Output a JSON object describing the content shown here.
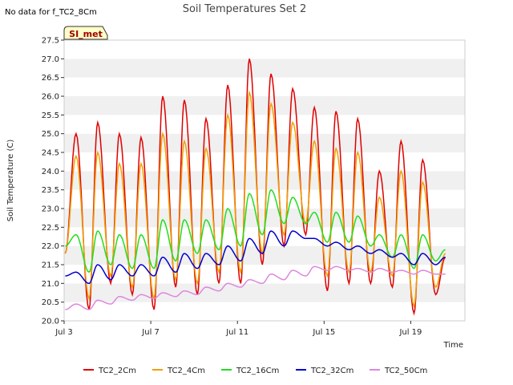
{
  "chart_data": {
    "type": "line",
    "title": "Soil Temperatures Set 2",
    "note": "No data for f_TC2_8Cm",
    "site_badge": "SI_met",
    "xlabel": "Time",
    "ylabel": "Soil Temperature (C)",
    "xlim": [
      3,
      21.5
    ],
    "ylim": [
      20.0,
      27.5
    ],
    "x_tick_values": [
      3,
      7,
      11,
      15,
      19
    ],
    "x_tick_labels": [
      "Jul 3",
      "Jul 7",
      "Jul 11",
      "Jul 15",
      "Jul 19"
    ],
    "y_ticks": [
      "20.0",
      "20.5",
      "21.0",
      "21.5",
      "22.0",
      "22.5",
      "23.0",
      "23.5",
      "24.0",
      "24.5",
      "25.0",
      "25.5",
      "26.0",
      "26.5",
      "27.0",
      "27.5"
    ],
    "y_tick_values": [
      20.0,
      20.5,
      21.0,
      21.5,
      22.0,
      22.5,
      23.0,
      23.5,
      24.0,
      24.5,
      25.0,
      25.5,
      26.0,
      26.5,
      27.0,
      27.5
    ],
    "grid": "horizontal bands",
    "legend_position": "bottom",
    "daily_cycles": {
      "days": [
        3.2,
        4.2,
        5.2,
        6.2,
        7.2,
        8.2,
        9.2,
        10.2,
        11.2,
        12.2,
        13.2,
        14.2,
        15.2,
        16.2,
        17.2,
        18.2,
        19.2,
        20.2
      ],
      "x_end": 20.6
    },
    "series": [
      {
        "name": "TC2_2Cm",
        "color": "#e00000",
        "start": 21.8,
        "end": 21.7,
        "maxima": [
          25.0,
          25.3,
          25.0,
          24.9,
          26.0,
          25.9,
          25.4,
          26.3,
          27.0,
          26.6,
          26.2,
          25.7,
          25.6,
          25.4,
          24.0,
          24.8,
          24.3
        ],
        "minima": [
          20.3,
          21.0,
          20.7,
          20.3,
          20.9,
          20.7,
          21.0,
          21.0,
          21.5,
          22.0,
          22.3,
          20.8,
          21.0,
          21.0,
          20.9,
          20.2,
          20.7
        ]
      },
      {
        "name": "TC2_4Cm",
        "color": "#f0a000",
        "start": 21.8,
        "end": 21.8,
        "maxima": [
          24.4,
          24.5,
          24.2,
          24.2,
          25.0,
          24.8,
          24.6,
          25.5,
          26.1,
          25.8,
          25.3,
          24.8,
          24.6,
          24.5,
          23.3,
          24.0,
          23.7
        ],
        "minima": [
          20.6,
          21.2,
          20.9,
          20.6,
          21.1,
          21.0,
          21.3,
          21.3,
          21.8,
          22.3,
          22.6,
          21.2,
          21.3,
          21.3,
          21.2,
          20.4,
          20.9
        ]
      },
      {
        "name": "TC2_16Cm",
        "color": "#22dd22",
        "start": 22.0,
        "end": 21.9,
        "maxima": [
          22.3,
          22.4,
          22.3,
          22.3,
          22.7,
          22.7,
          22.7,
          23.0,
          23.4,
          23.5,
          23.3,
          22.9,
          22.9,
          22.8,
          22.3,
          22.3,
          22.3
        ],
        "minima": [
          21.3,
          21.5,
          21.4,
          21.4,
          21.6,
          21.8,
          21.9,
          22.0,
          22.3,
          22.6,
          22.6,
          22.1,
          22.1,
          22.0,
          21.7,
          21.4,
          21.6
        ]
      },
      {
        "name": "TC2_32Cm",
        "color": "#0000cc",
        "start": 21.2,
        "end": 21.7,
        "maxima": [
          21.3,
          21.5,
          21.5,
          21.5,
          21.7,
          21.8,
          21.8,
          22.0,
          22.2,
          22.4,
          22.4,
          22.2,
          22.1,
          22.0,
          21.9,
          21.8,
          21.8
        ],
        "minima": [
          21.0,
          21.1,
          21.2,
          21.2,
          21.3,
          21.4,
          21.5,
          21.6,
          21.8,
          22.0,
          22.2,
          22.0,
          21.9,
          21.8,
          21.7,
          21.5,
          21.5
        ]
      },
      {
        "name": "TC2_50Cm",
        "color": "#dd88dd",
        "start": 20.3,
        "end": 21.25,
        "maxima": [
          20.45,
          20.55,
          20.65,
          20.7,
          20.75,
          20.8,
          20.9,
          21.0,
          21.1,
          21.25,
          21.35,
          21.45,
          21.45,
          21.4,
          21.4,
          21.35,
          21.35
        ],
        "minima": [
          20.3,
          20.45,
          20.55,
          20.6,
          20.65,
          20.7,
          20.8,
          20.9,
          21.0,
          21.1,
          21.2,
          21.35,
          21.35,
          21.3,
          21.3,
          21.25,
          21.25
        ]
      }
    ]
  }
}
